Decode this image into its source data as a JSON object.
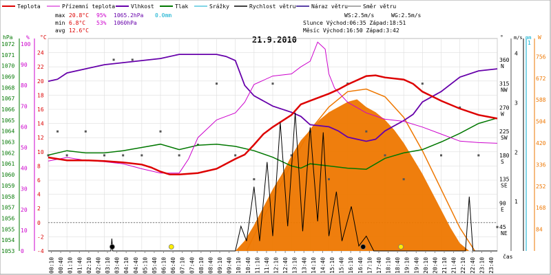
{
  "chart_data": {
    "type": "line",
    "title": "21.9.2010",
    "legend": [
      {
        "label": "Teplota",
        "color": "#dd0000"
      },
      {
        "label": "Přízemní teplota",
        "color": "#cc00cc"
      },
      {
        "label": "Vlhkost",
        "color": "#6600aa"
      },
      {
        "label": "Tlak",
        "color": "#007700"
      },
      {
        "label": "Srážky",
        "color": "#00aacc"
      },
      {
        "label": "Rychlost větru",
        "color": "#000000"
      },
      {
        "label": "Náraz větru",
        "color": "#220088"
      },
      {
        "label": "Směr větru",
        "color": "#555555"
      }
    ],
    "stats": {
      "max": {
        "label": "max",
        "temp": "20.8°C",
        "hum": "95%",
        "press": "1065.2hPa",
        "rain": "0.0mm"
      },
      "min": {
        "label": "min",
        "temp": "6.8°C",
        "hum": "53%",
        "press": "1060hPa"
      },
      "avg": {
        "label": "avg",
        "temp": "12.6°C"
      },
      "ws": "WS:2.5m/s",
      "wg": "WG:2.5m/s",
      "sun": "Slunce Východ:06:35  Západ:18:51",
      "moon": "Měsíc  Východ:16:50  Západ:3:42"
    },
    "axes": {
      "hpa": {
        "label": "hPa",
        "color": "#007700",
        "ticks": [
          1072,
          1071,
          1070,
          1069,
          1068,
          1067,
          1066,
          1065,
          1064,
          1063,
          1062,
          1061,
          1060,
          1059,
          1058,
          1057,
          1056,
          1055,
          1054,
          1053
        ]
      },
      "pct": {
        "label": "%",
        "color": "#cc00cc",
        "ticks": [
          100,
          90,
          80,
          70,
          60,
          50,
          40,
          30,
          20,
          10,
          0
        ]
      },
      "temp": {
        "label": "°C",
        "color": "#dd0000",
        "ticks": [
          24,
          22,
          20,
          18,
          16,
          14,
          12,
          10,
          8,
          6,
          4,
          2,
          0,
          -2,
          -4
        ]
      },
      "dir": {
        "label": "°",
        "ticks": [
          {
            "v": "360",
            "d": "N"
          },
          {
            "v": "315",
            "d": "NW"
          },
          {
            "v": "270",
            "d": "W"
          },
          {
            "v": "225",
            "d": "SW"
          },
          {
            "v": "180",
            "d": "S"
          },
          {
            "v": "135",
            "d": "SE"
          },
          {
            "v": "90",
            "d": "E"
          },
          {
            "v": "45",
            "d": "NE"
          }
        ]
      },
      "ms": {
        "label": "m/s",
        "ticks": [
          "4",
          "3",
          "2",
          "1"
        ]
      },
      "mm": {
        "label": "mm",
        "color": "#00aacc",
        "ticks": [
          "1"
        ]
      },
      "wm2": {
        "label": "W",
        "color": "#ee7700",
        "ticks": [
          "756",
          "672",
          "588",
          "504",
          "420",
          "336",
          "252",
          "168",
          "84"
        ]
      },
      "x": {
        "label": "čas",
        "ticks": [
          "00:10",
          "00:40",
          "01:10",
          "01:40",
          "02:10",
          "02:40",
          "03:10",
          "03:40",
          "04:10",
          "04:40",
          "05:10",
          "05:40",
          "06:10",
          "06:40",
          "07:10",
          "07:40",
          "08:10",
          "08:40",
          "09:10",
          "09:40",
          "10:10",
          "10:40",
          "11:10",
          "11:40",
          "12:10",
          "12:40",
          "13:10",
          "13:40",
          "14:10",
          "14:40",
          "15:10",
          "15:40",
          "16:10",
          "16:40",
          "17:10",
          "17:40",
          "18:10",
          "18:40",
          "19:10",
          "19:40",
          "20:10",
          "20:40",
          "21:10",
          "21:40",
          "22:10",
          "22:40",
          "23:10",
          "23:40"
        ]
      }
    },
    "series": {
      "temperature": [
        [
          0,
          9.2
        ],
        [
          1,
          8.8
        ],
        [
          2,
          8.8
        ],
        [
          3,
          8.7
        ],
        [
          4,
          8.5
        ],
        [
          5,
          8.2
        ],
        [
          5.5,
          7.8
        ],
        [
          6,
          7.2
        ],
        [
          6.5,
          6.8
        ],
        [
          7,
          6.8
        ],
        [
          8,
          7.0
        ],
        [
          9,
          7.6
        ],
        [
          10,
          9.0
        ],
        [
          10.5,
          9.6
        ],
        [
          11,
          11
        ],
        [
          11.5,
          12.5
        ],
        [
          12,
          13.5
        ],
        [
          13,
          15.2
        ],
        [
          13.5,
          16.7
        ],
        [
          14,
          17.2
        ],
        [
          15,
          18.2
        ],
        [
          15.5,
          18.8
        ],
        [
          16,
          19.5
        ],
        [
          17,
          20.7
        ],
        [
          17.5,
          20.8
        ],
        [
          18,
          20.5
        ],
        [
          19,
          20.2
        ],
        [
          19.5,
          19.6
        ],
        [
          20,
          18.5
        ],
        [
          21,
          17.2
        ],
        [
          22,
          16.1
        ],
        [
          23,
          15.2
        ],
        [
          24,
          14.7
        ]
      ],
      "ground_temperature": [
        [
          0,
          8.7
        ],
        [
          1,
          9.2
        ],
        [
          2,
          8.8
        ],
        [
          3,
          8.6
        ],
        [
          4,
          8.3
        ],
        [
          5,
          7.6
        ],
        [
          6,
          7.0
        ],
        [
          7,
          7.0
        ],
        [
          7.5,
          9
        ],
        [
          8,
          12
        ],
        [
          9,
          14.5
        ],
        [
          10,
          15.5
        ],
        [
          10.5,
          17
        ],
        [
          11,
          19.5
        ],
        [
          12,
          20.7
        ],
        [
          13,
          21
        ],
        [
          13.5,
          22
        ],
        [
          14,
          22.8
        ],
        [
          14.4,
          25.5
        ],
        [
          14.8,
          24.5
        ],
        [
          15,
          21
        ],
        [
          15.3,
          19
        ],
        [
          16,
          17
        ],
        [
          17,
          15.5
        ],
        [
          18,
          14.6
        ],
        [
          19,
          14.3
        ],
        [
          20,
          13.5
        ],
        [
          21,
          12.5
        ],
        [
          22,
          11.5
        ],
        [
          23,
          11.3
        ],
        [
          24,
          11.2
        ]
      ],
      "humidity": [
        [
          0,
          82
        ],
        [
          0.5,
          83
        ],
        [
          1,
          86
        ],
        [
          2,
          88
        ],
        [
          2.5,
          89
        ],
        [
          3,
          90
        ],
        [
          4,
          91
        ],
        [
          5,
          92
        ],
        [
          6,
          93
        ],
        [
          7,
          95
        ],
        [
          8,
          95
        ],
        [
          9,
          95
        ],
        [
          9.5,
          94
        ],
        [
          10,
          92
        ],
        [
          10.5,
          80
        ],
        [
          11,
          75
        ],
        [
          12,
          70
        ],
        [
          13,
          67
        ],
        [
          13.5,
          65
        ],
        [
          14,
          61
        ],
        [
          15,
          60
        ],
        [
          15.5,
          58
        ],
        [
          16,
          55
        ],
        [
          17,
          53
        ],
        [
          17.5,
          54
        ],
        [
          18,
          58
        ],
        [
          19,
          63
        ],
        [
          19.5,
          66
        ],
        [
          20,
          72
        ],
        [
          21,
          77
        ],
        [
          22,
          84
        ],
        [
          23,
          87
        ],
        [
          24,
          88
        ]
      ],
      "pressure": [
        [
          0,
          1061.8
        ],
        [
          1,
          1062.2
        ],
        [
          2,
          1062
        ],
        [
          3,
          1062
        ],
        [
          4,
          1062.2
        ],
        [
          5,
          1062.5
        ],
        [
          6,
          1062.8
        ],
        [
          7,
          1062.3
        ],
        [
          8,
          1062.7
        ],
        [
          9,
          1062.8
        ],
        [
          10,
          1062.6
        ],
        [
          11,
          1062.2
        ],
        [
          12,
          1061.6
        ],
        [
          13,
          1060.8
        ],
        [
          13.5,
          1060.6
        ],
        [
          14,
          1061
        ],
        [
          15,
          1060.8
        ],
        [
          16,
          1060.6
        ],
        [
          17,
          1060.5
        ],
        [
          18,
          1061.5
        ],
        [
          19,
          1062
        ],
        [
          20,
          1062.3
        ],
        [
          21,
          1063
        ],
        [
          22,
          1063.8
        ],
        [
          23,
          1064.7
        ],
        [
          24,
          1065.2
        ]
      ],
      "wind_speed": [
        [
          0,
          0
        ],
        [
          3.35,
          0
        ],
        [
          3.4,
          0.25
        ],
        [
          3.45,
          0
        ],
        [
          4.5,
          0
        ],
        [
          6.5,
          0
        ],
        [
          8.5,
          0
        ],
        [
          10,
          0
        ],
        [
          10.3,
          0.5
        ],
        [
          10.6,
          0.2
        ],
        [
          11,
          1.3
        ],
        [
          11.3,
          0.2
        ],
        [
          11.7,
          1.8
        ],
        [
          12,
          0.3
        ],
        [
          12.4,
          2.6
        ],
        [
          12.8,
          0.5
        ],
        [
          13.2,
          2.8
        ],
        [
          13.6,
          0.4
        ],
        [
          14,
          2.5
        ],
        [
          14.4,
          0.6
        ],
        [
          14.7,
          2.4
        ],
        [
          15,
          0.3
        ],
        [
          15.4,
          1.2
        ],
        [
          15.7,
          0.2
        ],
        [
          16.2,
          0.9
        ],
        [
          16.6,
          0.1
        ],
        [
          17,
          0.3
        ],
        [
          17.4,
          0
        ],
        [
          22.3,
          0
        ],
        [
          22.5,
          1.1
        ],
        [
          22.7,
          0
        ],
        [
          24,
          0
        ]
      ],
      "solar": [
        [
          10,
          0
        ],
        [
          10.5,
          40
        ],
        [
          11,
          100
        ],
        [
          11.5,
          170
        ],
        [
          12,
          240
        ],
        [
          12.5,
          300
        ],
        [
          13,
          370
        ],
        [
          13.5,
          430
        ],
        [
          14,
          470
        ],
        [
          14.5,
          510
        ],
        [
          15,
          540
        ],
        [
          15.5,
          560
        ],
        [
          16,
          580
        ],
        [
          16.5,
          590
        ],
        [
          17,
          560
        ],
        [
          17.5,
          540
        ],
        [
          18,
          510
        ],
        [
          18.5,
          470
        ],
        [
          19,
          420
        ],
        [
          19.5,
          360
        ],
        [
          20,
          300
        ],
        [
          20.5,
          230
        ],
        [
          21,
          160
        ],
        [
          21.5,
          90
        ],
        [
          22,
          30
        ],
        [
          22.5,
          0
        ]
      ],
      "solar_clear": [
        [
          10.6,
          0
        ],
        [
          11,
          60
        ],
        [
          12,
          200
        ],
        [
          13,
          340
        ],
        [
          14,
          470
        ],
        [
          15,
          560
        ],
        [
          16,
          620
        ],
        [
          17,
          630
        ],
        [
          18,
          600
        ],
        [
          19,
          520
        ],
        [
          20,
          390
        ],
        [
          21,
          240
        ],
        [
          22,
          90
        ],
        [
          22.8,
          0
        ]
      ],
      "wind_dir": [
        [
          0,
          180
        ],
        [
          0.5,
          225
        ],
        [
          1,
          180
        ],
        [
          2,
          225
        ],
        [
          3,
          180
        ],
        [
          3.5,
          360
        ],
        [
          4,
          180
        ],
        [
          4.5,
          360
        ],
        [
          5,
          180
        ],
        [
          6,
          225
        ],
        [
          7,
          180
        ],
        [
          8,
          200
        ],
        [
          9,
          315
        ],
        [
          10,
          180
        ],
        [
          11,
          135
        ],
        [
          12,
          315
        ],
        [
          13,
          180
        ],
        [
          14,
          225
        ],
        [
          15,
          135
        ],
        [
          16,
          315
        ],
        [
          17,
          225
        ],
        [
          18,
          180
        ],
        [
          19,
          135
        ],
        [
          20,
          315
        ],
        [
          21,
          180
        ],
        [
          22,
          270
        ],
        [
          23,
          180
        ],
        [
          24,
          45
        ]
      ]
    },
    "markers": [
      {
        "type": "moonset",
        "x": 3.42
      },
      {
        "type": "sunrise",
        "x": 6.58
      },
      {
        "type": "moonrise",
        "x": 16.83
      },
      {
        "type": "sunset",
        "x": 18.85
      }
    ],
    "ranges": {
      "temp": [
        -4,
        26
      ],
      "hum": [
        0,
        100
      ],
      "press": [
        1053,
        1072.5
      ],
      "wind": [
        0,
        4.3
      ],
      "solar": [
        0,
        800
      ],
      "dir": [
        0,
        400
      ],
      "hours": [
        0,
        24
      ]
    }
  }
}
